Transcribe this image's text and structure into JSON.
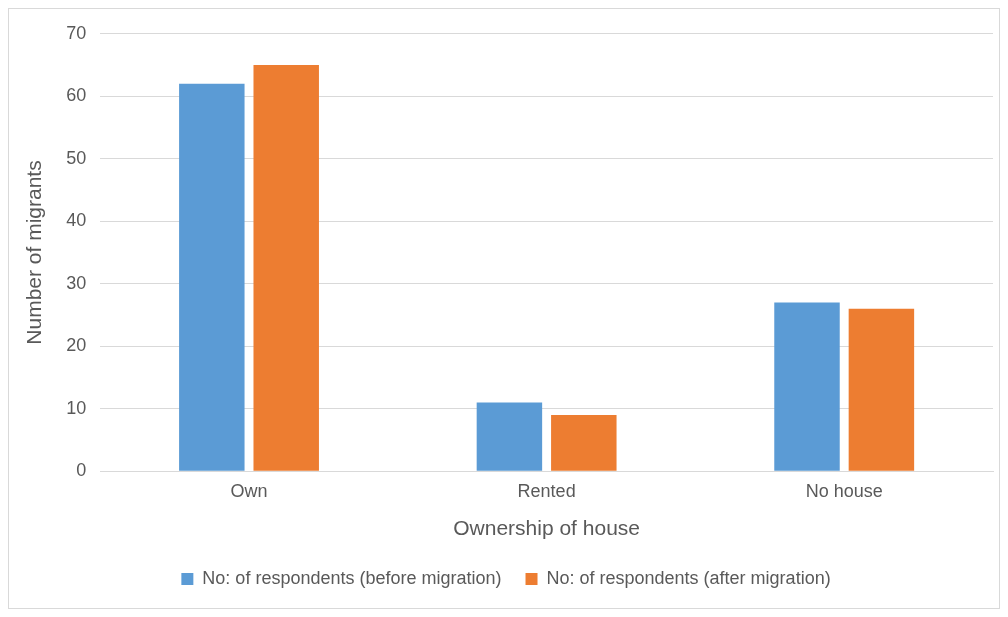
{
  "chart_data": {
    "type": "bar",
    "xlabel": "Ownership of house",
    "ylabel": "Number of migrants",
    "categories": [
      "Own",
      "Rented",
      "No house"
    ],
    "series": [
      {
        "name": "No: of respondents (before migration)",
        "color": "#5b9bd5",
        "values": [
          62,
          11,
          27
        ]
      },
      {
        "name": "No: of respondents (after migration)",
        "color": "#ed7d31",
        "values": [
          65,
          9,
          26
        ]
      }
    ],
    "ylim": [
      0,
      70
    ],
    "yticks": [
      0,
      10,
      20,
      30,
      40,
      50,
      60,
      70
    ],
    "grid": "y",
    "legend": "bottom"
  }
}
